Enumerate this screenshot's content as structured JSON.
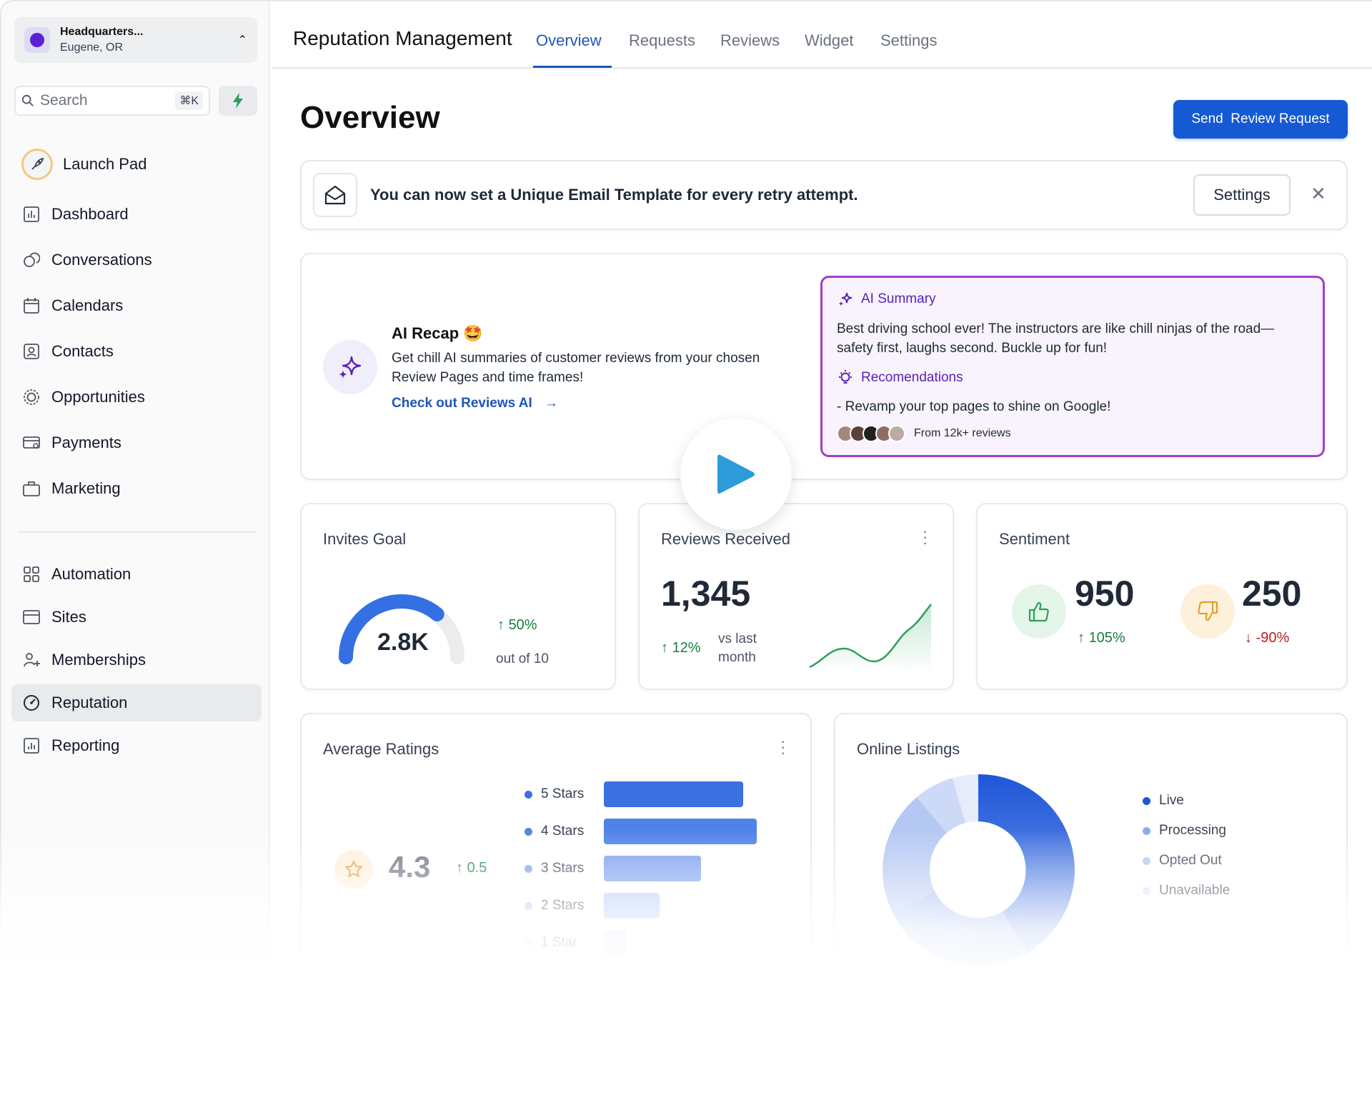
{
  "location": {
    "name": "Headquarters...",
    "city": "Eugene, OR"
  },
  "search": {
    "placeholder": "Search",
    "shortcut": "⌘K"
  },
  "sidebar": {
    "items": [
      {
        "label": "Launch Pad",
        "icon": "rocket-icon"
      },
      {
        "label": "Dashboard",
        "icon": "chart-icon"
      },
      {
        "label": "Conversations",
        "icon": "chat-icon"
      },
      {
        "label": "Calendars",
        "icon": "calendar-icon"
      },
      {
        "label": "Contacts",
        "icon": "contact-icon"
      },
      {
        "label": "Opportunities",
        "icon": "target-icon"
      },
      {
        "label": "Payments",
        "icon": "payment-icon"
      },
      {
        "label": "Marketing",
        "icon": "briefcase-icon"
      },
      {
        "label": "Automation",
        "icon": "automation-icon"
      },
      {
        "label": "Sites",
        "icon": "browser-icon"
      },
      {
        "label": "Memberships",
        "icon": "members-icon"
      },
      {
        "label": "Reputation",
        "icon": "gauge-icon",
        "active": true
      },
      {
        "label": "Reporting",
        "icon": "report-icon"
      }
    ]
  },
  "header": {
    "title": "Reputation Management",
    "tabs": [
      "Overview",
      "Requests",
      "Reviews",
      "Widget",
      "Settings"
    ],
    "active_tab": "Overview"
  },
  "page": {
    "title": "Overview",
    "primary_button": "Send  Review Request"
  },
  "banner": {
    "text": "You can now set a Unique Email Template for every retry attempt.",
    "button": "Settings"
  },
  "recap": {
    "title": "AI Recap 🤩",
    "description": "Get chill AI summaries of customer reviews from your chosen Review Pages and time frames!",
    "link": "Check out Reviews AI",
    "summary_heading": "AI Summary",
    "summary_text": "Best driving school ever! The instructors are like chill ninjas of the road—safety first, laughs second. Buckle up for fun!",
    "rec_heading": "Recomendations",
    "rec_text": "- Revamp your top pages to shine on Google!",
    "footer": "From 12k+ reviews"
  },
  "invites": {
    "title": "Invites Goal",
    "value": "2.8K",
    "change": "50%",
    "sub": "out of 10",
    "progress": 0.72
  },
  "received": {
    "title": "Reviews Received",
    "value": "1,345",
    "change": "12%",
    "sub_line1": "vs last",
    "sub_line2": "month"
  },
  "sentiment": {
    "title": "Sentiment",
    "positive": {
      "value": "950",
      "change": "105%"
    },
    "negative": {
      "value": "250",
      "change": "-90%"
    }
  },
  "ratings": {
    "title": "Average Ratings",
    "value": "4.3",
    "change": "0.5",
    "rows": [
      {
        "label": "5 Stars",
        "share": 0.83
      },
      {
        "label": "4 Stars",
        "share": 0.91
      },
      {
        "label": "3 Stars",
        "share": 0.58
      },
      {
        "label": "2 Stars",
        "share": 0.33
      },
      {
        "label": "1 Star",
        "share": 0.13
      }
    ]
  },
  "listings": {
    "title": "Online Listings",
    "legend": [
      {
        "label": "Live",
        "color": "#1e56d9"
      },
      {
        "label": "Processing",
        "color": "#8aa8ee"
      },
      {
        "label": "Opted Out",
        "color": "#b5c8f3"
      },
      {
        "label": "Unavailable",
        "color": "#dbe4f8"
      }
    ]
  },
  "colors": {
    "accent": "#1559d4",
    "positive": "#15803d",
    "negative": "#b91c1c",
    "ai_purple": "#a43cc8"
  }
}
